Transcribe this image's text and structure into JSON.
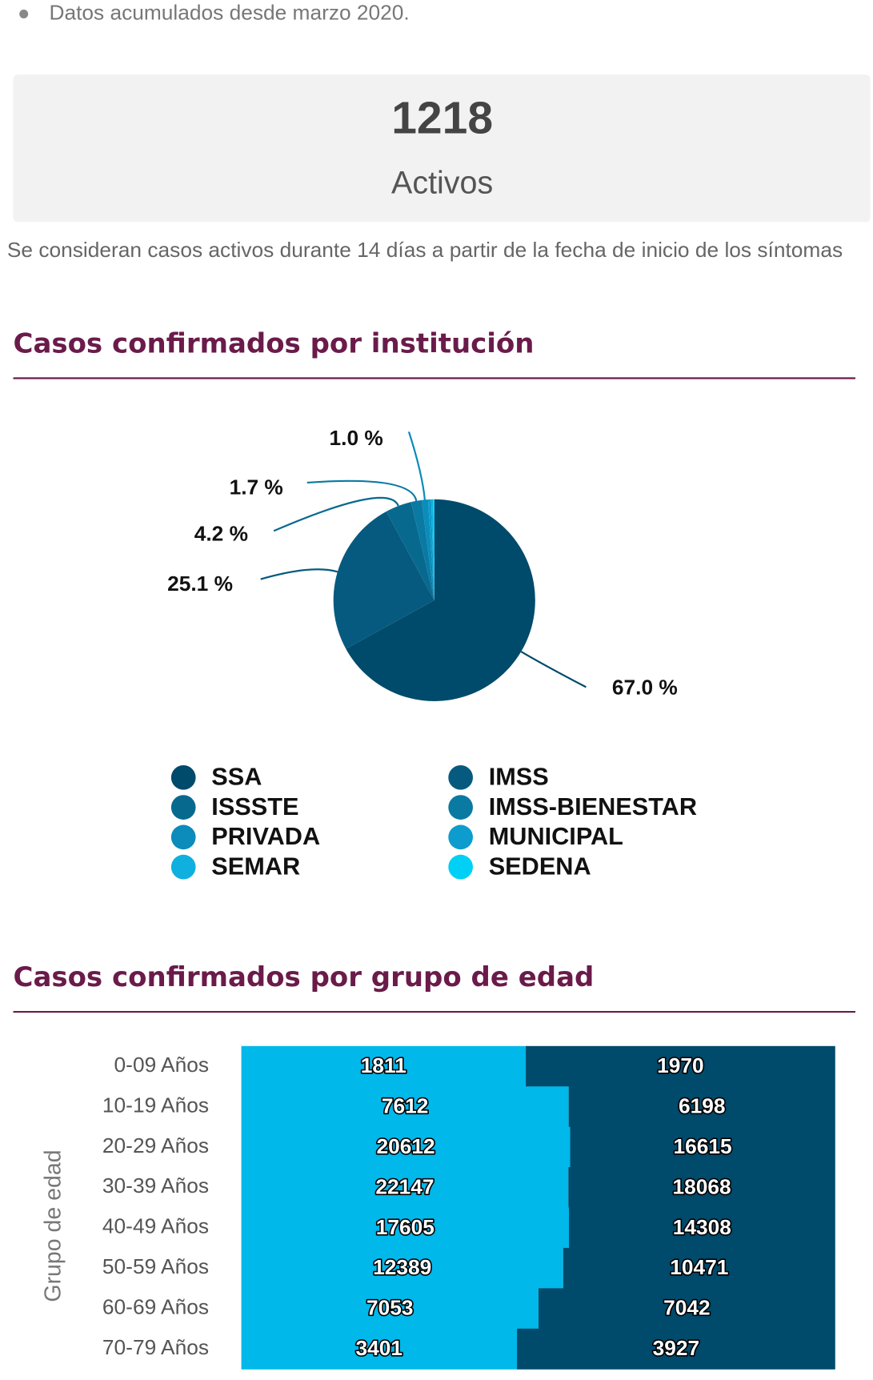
{
  "bullet": "Datos acumulados desde marzo 2020.",
  "stat": {
    "value": 1218,
    "label": "Activos"
  },
  "note": "Se consideran casos activos durante 14 días a partir de la fecha de inicio de los síntomas",
  "chart_data": [
    {
      "type": "pie",
      "title": "Casos confirmados por institución",
      "categories": [
        "SSA",
        "IMSS",
        "ISSSTE",
        "IMSS-BIENESTAR",
        "PRIVADA",
        "MUNICIPAL",
        "SEMAR",
        "SEDENA"
      ],
      "values": [
        67.0,
        25.1,
        4.2,
        1.7,
        1.0,
        0.5,
        0.3,
        0.2
      ],
      "value_labels": [
        "67.0 %",
        "25.1 %",
        "4.2 %",
        "1.7 %",
        "1.0 %",
        null,
        null,
        null
      ],
      "colors": [
        "#004a6b",
        "#075a7f",
        "#08698f",
        "#0a7aa3",
        "#0b8cba",
        "#0d9ccd",
        "#0fb0e0",
        "#00d0f5"
      ]
    },
    {
      "type": "bar",
      "title": "Casos confirmados por grupo de edad",
      "y_label": "Grupo de edad",
      "stacked_percent": true,
      "categories": [
        "0-09 Años",
        "10-19 Años",
        "20-29 Años",
        "30-39 Años",
        "40-49 Años",
        "50-59 Años",
        "60-69 Años",
        "70-79 Años"
      ],
      "series": [
        {
          "color": "#00b8ea",
          "values": [
            1811,
            7612,
            20612,
            22147,
            17605,
            12389,
            7053,
            3401
          ]
        },
        {
          "color": "#004a6b",
          "values": [
            1970,
            6198,
            16615,
            18068,
            14308,
            10471,
            7042,
            3927
          ]
        }
      ]
    }
  ]
}
